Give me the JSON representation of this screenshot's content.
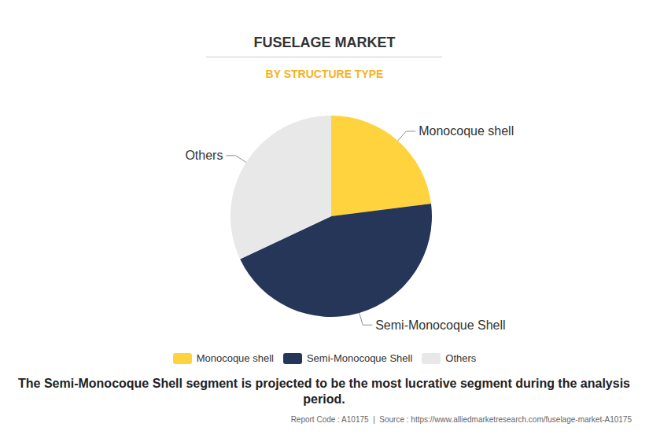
{
  "chart_data": {
    "type": "pie",
    "title": "FUSELAGE MARKET",
    "subtitle": "BY STRUCTURE TYPE",
    "categories": [
      "Monocoque shell",
      "Semi-Monocoque Shell",
      "Others"
    ],
    "values": [
      23,
      45,
      32
    ],
    "colors": [
      "#ffd33d",
      "#253659",
      "#e8e8e8"
    ],
    "legend": "bottom",
    "caption": "The Semi-Monocoque Shell segment is projected to be the most lucrative segment during the analysis period.",
    "source": "Report Code : A10175  |  Source : https://www.alliedmarketresearch.com/fuselage-market-A10175"
  }
}
